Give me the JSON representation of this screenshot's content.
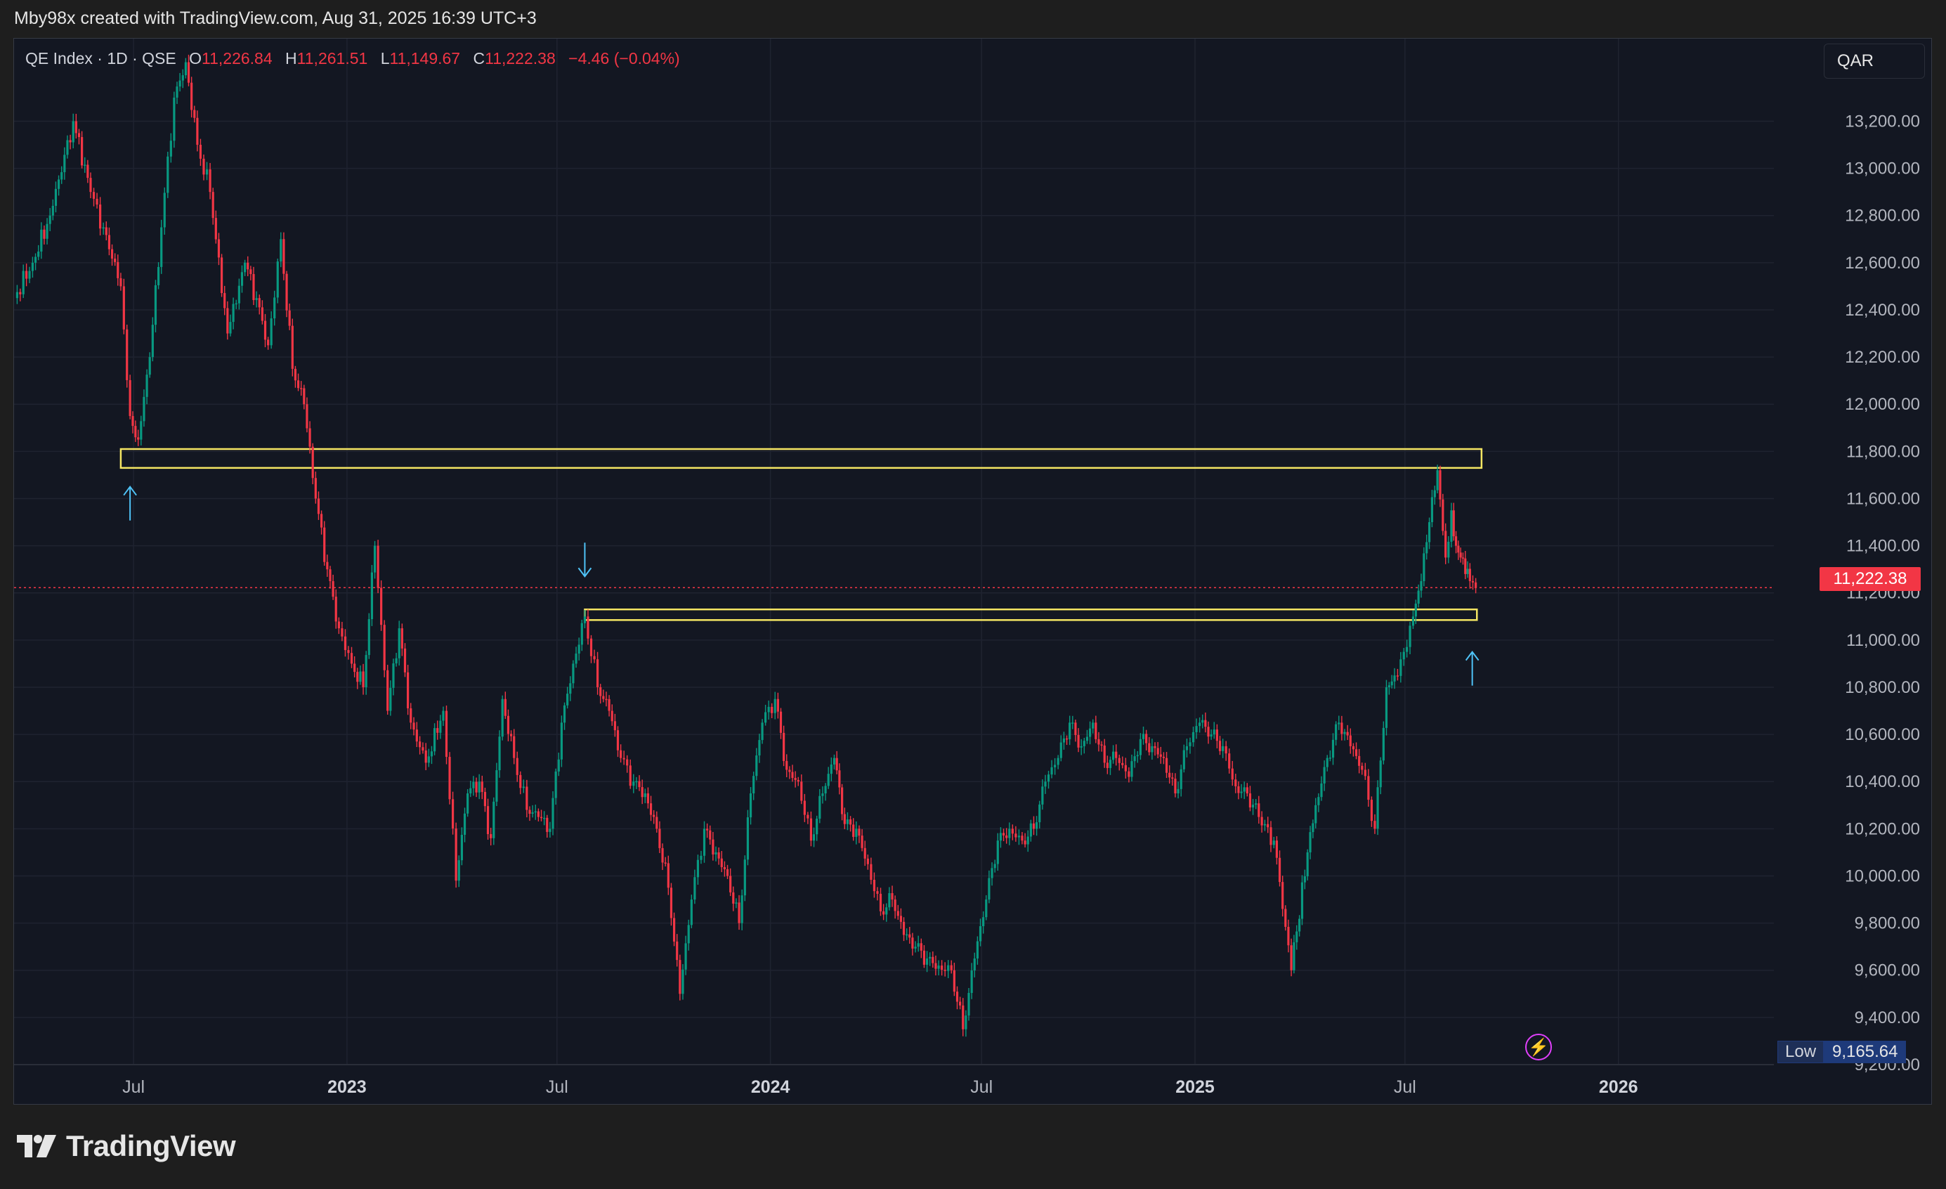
{
  "header": {
    "attribution": "Mby98x created with TradingView.com, Aug 31, 2025 16:39 UTC+3"
  },
  "legend": {
    "symbol": "QE Index · 1D · QSE",
    "open_label": "O",
    "open": "11,226.84",
    "high_label": "H",
    "high": "11,261.51",
    "low_label": "L",
    "low": "11,149.67",
    "close_label": "C",
    "close": "11,222.38",
    "change": "−4.46 (−0.04%)"
  },
  "currency": "QAR",
  "last_price_tag": "11,222.38",
  "low_marker": {
    "label": "Low",
    "value": "9,165.64"
  },
  "footer": {
    "brand": "TradingView"
  },
  "colors": {
    "up": "#089981",
    "down": "#f23645",
    "zone": "#f5e663",
    "arrow": "#4fc3f7",
    "background": "#131722",
    "grid": "#1f2330"
  },
  "chart_data": {
    "type": "line",
    "title": "QE Index · 1D · QSE",
    "ylim": [
      9200,
      13550
    ],
    "y_ticks": [
      9400,
      9600,
      9800,
      10000,
      10200,
      10400,
      10600,
      10800,
      11000,
      11200,
      11400,
      11600,
      11800,
      12000,
      12200,
      12400,
      12600,
      12800,
      13000,
      13200
    ],
    "y_tick_labels": [
      "9,400.00",
      "9,600.00",
      "9,800.00",
      "10,000.00",
      "10,200.00",
      "10,400.00",
      "10,600.00",
      "10,800.00",
      "11,000.00",
      "11,200.00",
      "11,400.00",
      "11,600.00",
      "11,800.00",
      "12,000.00",
      "12,200.00",
      "12,400.00",
      "12,600.00",
      "12,800.00",
      "13,000.00",
      "13,200.00"
    ],
    "partial_tick_label": "9,200.00",
    "x_ticks": [
      "2022-07-01",
      "2023-01-01",
      "2023-07-01",
      "2024-01-01",
      "2024-07-01",
      "2025-01-01",
      "2025-07-01",
      "2026-01-01"
    ],
    "x_tick_labels": [
      "Jul",
      "2023",
      "Jul",
      "2024",
      "Jul",
      "2025",
      "Jul",
      "2026"
    ],
    "x_range": [
      "2022-03-20",
      "2026-05-15"
    ],
    "series": [
      {
        "x": [
          "2022-03-20",
          "2022-04-05",
          "2022-04-20",
          "2022-05-10",
          "2022-05-25",
          "2022-06-05",
          "2022-06-20",
          "2022-06-28",
          "2022-07-05",
          "2022-07-15",
          "2022-07-25",
          "2022-08-05",
          "2022-08-15",
          "2022-08-25",
          "2022-09-05",
          "2022-09-20",
          "2022-10-05",
          "2022-10-15",
          "2022-10-25",
          "2022-11-05",
          "2022-11-15",
          "2022-11-25",
          "2022-12-05",
          "2022-12-15",
          "2022-12-25",
          "2023-01-05",
          "2023-01-15",
          "2023-01-25",
          "2023-02-05",
          "2023-02-15",
          "2023-02-25",
          "2023-03-10",
          "2023-03-25",
          "2023-04-05",
          "2023-04-15",
          "2023-04-25",
          "2023-05-05",
          "2023-05-15",
          "2023-05-25",
          "2023-06-05",
          "2023-06-15",
          "2023-06-25",
          "2023-07-05",
          "2023-07-15",
          "2023-07-25",
          "2023-08-05",
          "2023-08-15",
          "2023-08-25",
          "2023-09-05",
          "2023-09-15",
          "2023-09-25",
          "2023-10-05",
          "2023-10-15",
          "2023-10-25",
          "2023-11-05",
          "2023-11-15",
          "2023-11-25",
          "2023-12-05",
          "2023-12-15",
          "2023-12-25",
          "2024-01-05",
          "2024-01-15",
          "2024-01-25",
          "2024-02-05",
          "2024-02-15",
          "2024-02-25",
          "2024-03-05",
          "2024-03-15",
          "2024-03-25",
          "2024-04-05",
          "2024-04-15",
          "2024-04-25",
          "2024-05-05",
          "2024-05-15",
          "2024-05-25",
          "2024-06-05",
          "2024-06-15",
          "2024-06-25",
          "2024-07-05",
          "2024-07-15",
          "2024-07-25",
          "2024-08-05",
          "2024-08-15",
          "2024-08-25",
          "2024-09-05",
          "2024-09-15",
          "2024-09-25",
          "2024-10-05",
          "2024-10-15",
          "2024-10-25",
          "2024-11-05",
          "2024-11-15",
          "2024-11-25",
          "2024-12-05",
          "2024-12-15",
          "2024-12-25",
          "2025-01-05",
          "2025-01-15",
          "2025-01-25",
          "2025-02-05",
          "2025-02-15",
          "2025-02-25",
          "2025-03-10",
          "2025-03-25",
          "2025-04-08",
          "2025-04-15",
          "2025-04-25",
          "2025-05-05",
          "2025-05-15",
          "2025-05-25",
          "2025-06-05",
          "2025-06-15",
          "2025-06-22",
          "2025-06-30",
          "2025-07-08",
          "2025-07-15",
          "2025-07-22",
          "2025-07-29",
          "2025-08-05",
          "2025-08-10",
          "2025-08-14",
          "2025-08-18",
          "2025-08-22",
          "2025-08-26",
          "2025-08-31"
        ],
        "values": [
          12450,
          12600,
          12800,
          13200,
          12900,
          12750,
          12500,
          11950,
          11850,
          12200,
          12750,
          13300,
          13450,
          13100,
          12900,
          12300,
          12600,
          12450,
          12250,
          12700,
          12150,
          12000,
          11600,
          11300,
          11050,
          10900,
          10800,
          11400,
          10700,
          11050,
          10650,
          10480,
          10700,
          9980,
          10350,
          10400,
          10160,
          10750,
          10500,
          10280,
          10250,
          10200,
          10650,
          10900,
          11100,
          10800,
          10700,
          10500,
          10400,
          10350,
          10200,
          9950,
          9500,
          9900,
          10200,
          10100,
          10000,
          9800,
          10350,
          10650,
          10750,
          10450,
          10400,
          10150,
          10350,
          10500,
          10220,
          10200,
          10050,
          9850,
          9900,
          9750,
          9700,
          9650,
          9620,
          9600,
          9350,
          9650,
          9900,
          10150,
          10200,
          10150,
          10200,
          10400,
          10500,
          10650,
          10550,
          10650,
          10480,
          10500,
          10420,
          10580,
          10550,
          10500,
          10350,
          10550,
          10650,
          10600,
          10550,
          10380,
          10350,
          10250,
          10150,
          9600,
          10100,
          10300,
          10500,
          10650,
          10550,
          10450,
          10200,
          10800,
          10850,
          10950,
          11100,
          11250,
          11500,
          11720,
          11350,
          11550,
          11400,
          11350,
          11280,
          11250,
          11222.38
        ]
      }
    ],
    "annotations": {
      "resistance_zone": [
        11730,
        11810
      ],
      "support_zone": [
        11085,
        11130
      ],
      "last_price": 11222.38,
      "low": 9165.64,
      "arrows": [
        {
          "date": "2022-06-28",
          "value": 11650,
          "direction": "up"
        },
        {
          "date": "2023-07-25",
          "value": 11270,
          "direction": "down"
        },
        {
          "date": "2025-08-28",
          "value": 10950,
          "direction": "up"
        }
      ]
    }
  }
}
